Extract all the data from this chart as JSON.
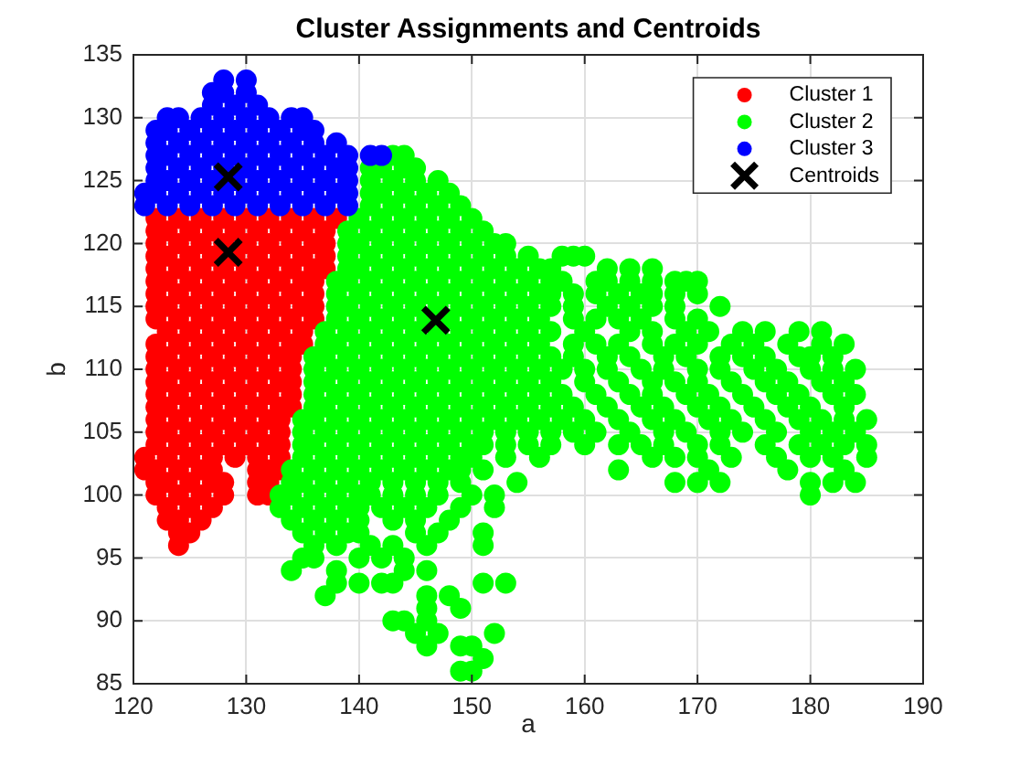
{
  "chart_data": {
    "type": "scatter",
    "title": "Cluster Assignments and Centroids",
    "xlabel": "a",
    "ylabel": "b",
    "xlim": [
      120,
      190
    ],
    "xticks": [
      120,
      130,
      140,
      150,
      160,
      170,
      180,
      190
    ],
    "ylim": [
      85,
      135
    ],
    "yticks": [
      85,
      90,
      95,
      100,
      105,
      110,
      115,
      120,
      125,
      130,
      135
    ],
    "grid": true,
    "legend": "top right",
    "marker": "circle",
    "series": [
      {
        "name": "Cluster 1",
        "color": "#ff0000",
        "x": [
          122,
          124,
          126,
          128,
          130,
          132,
          134,
          136,
          138,
          122,
          123,
          125,
          127,
          129,
          131,
          133,
          135,
          137,
          122,
          124,
          126,
          128,
          130,
          132,
          134,
          136,
          137,
          122,
          123,
          125,
          127,
          129,
          131,
          133,
          135,
          137,
          122,
          124,
          126,
          128,
          130,
          132,
          134,
          136,
          137,
          122,
          123,
          125,
          127,
          129,
          131,
          133,
          135,
          136,
          122,
          124,
          126,
          128,
          130,
          132,
          134,
          136,
          122,
          123,
          125,
          127,
          129,
          131,
          133,
          135,
          136,
          122,
          124,
          126,
          128,
          130,
          132,
          134,
          136,
          123,
          125,
          127,
          129,
          131,
          133,
          135,
          122,
          124,
          126,
          128,
          130,
          132,
          134,
          135,
          122,
          123,
          125,
          127,
          129,
          131,
          133,
          134,
          122,
          124,
          126,
          128,
          130,
          132,
          134,
          122,
          123,
          125,
          127,
          129,
          131,
          133,
          134,
          122,
          124,
          126,
          128,
          130,
          132,
          134,
          122,
          123,
          125,
          127,
          129,
          131,
          133,
          134,
          122,
          124,
          126,
          128,
          130,
          132,
          133,
          122,
          123,
          125,
          127,
          129,
          131,
          133,
          122,
          124,
          126,
          128,
          130,
          132,
          133,
          121,
          123,
          125,
          127,
          129,
          131,
          133,
          121,
          122,
          124,
          126,
          127,
          131,
          132,
          133,
          122,
          123,
          125,
          127,
          128,
          131,
          132,
          122,
          124,
          126,
          128,
          131,
          132,
          123,
          125,
          127,
          123,
          124,
          126,
          124,
          125,
          124
        ],
        "values": [
          122,
          122,
          122,
          122,
          122,
          122,
          122,
          122,
          122,
          121,
          121,
          121,
          121,
          121,
          121,
          121,
          121,
          121,
          120,
          120,
          120,
          120,
          120,
          120,
          120,
          120,
          120,
          119,
          119,
          119,
          119,
          119,
          119,
          119,
          119,
          119,
          118,
          118,
          118,
          118,
          118,
          118,
          118,
          118,
          118,
          117,
          117,
          117,
          117,
          117,
          117,
          117,
          117,
          117,
          116,
          116,
          116,
          116,
          116,
          116,
          116,
          116,
          115,
          115,
          115,
          115,
          115,
          115,
          115,
          115,
          115,
          114,
          114,
          114,
          114,
          114,
          114,
          114,
          114,
          113,
          113,
          113,
          113,
          113,
          113,
          113,
          112,
          112,
          112,
          112,
          112,
          112,
          112,
          112,
          111,
          111,
          111,
          111,
          111,
          111,
          111,
          111,
          110,
          110,
          110,
          110,
          110,
          110,
          110,
          109,
          109,
          109,
          109,
          109,
          109,
          109,
          109,
          108,
          108,
          108,
          108,
          108,
          108,
          108,
          107,
          107,
          107,
          107,
          107,
          107,
          107,
          107,
          106,
          106,
          106,
          106,
          106,
          106,
          106,
          105,
          105,
          105,
          105,
          105,
          105,
          105,
          104,
          104,
          104,
          104,
          104,
          104,
          104,
          103,
          103,
          103,
          103,
          103,
          103,
          103,
          102,
          102,
          102,
          102,
          102,
          102,
          102,
          102,
          101,
          101,
          101,
          101,
          101,
          101,
          101,
          100,
          100,
          100,
          100,
          100,
          100,
          99,
          99,
          99,
          98,
          98,
          98,
          97,
          97,
          96
        ]
      },
      {
        "name": "Cluster 2",
        "color": "#00ff00",
        "x": [
          143,
          144,
          141,
          142,
          144,
          145,
          141,
          143,
          145,
          147,
          141,
          142,
          144,
          146,
          148,
          141,
          143,
          145,
          147,
          149,
          140,
          142,
          144,
          146,
          148,
          150,
          139,
          141,
          143,
          145,
          147,
          149,
          151,
          139,
          140,
          142,
          144,
          146,
          148,
          150,
          152,
          153,
          139,
          141,
          143,
          145,
          147,
          149,
          151,
          153,
          155,
          158,
          159,
          160,
          139,
          140,
          142,
          144,
          146,
          148,
          150,
          152,
          154,
          156,
          157,
          162,
          164,
          166,
          138,
          139,
          141,
          143,
          145,
          147,
          149,
          151,
          153,
          155,
          157,
          158,
          161,
          162,
          164,
          166,
          168,
          169,
          170,
          138,
          140,
          142,
          144,
          146,
          148,
          150,
          152,
          154,
          156,
          157,
          159,
          161,
          163,
          165,
          166,
          168,
          170,
          138,
          139,
          141,
          143,
          145,
          147,
          149,
          151,
          153,
          155,
          157,
          159,
          162,
          164,
          166,
          168,
          172,
          138,
          140,
          142,
          144,
          146,
          148,
          150,
          152,
          154,
          156,
          159,
          161,
          163,
          165,
          168,
          170,
          137,
          139,
          141,
          143,
          145,
          147,
          149,
          151,
          153,
          155,
          157,
          160,
          164,
          166,
          169,
          171,
          174,
          176,
          179,
          181,
          137,
          138,
          140,
          142,
          144,
          146,
          148,
          150,
          152,
          154,
          156,
          159,
          161,
          163,
          166,
          168,
          170,
          173,
          175,
          178,
          181,
          183,
          136,
          137,
          139,
          141,
          143,
          145,
          147,
          149,
          151,
          153,
          155,
          157,
          159,
          162,
          164,
          167,
          169,
          172,
          174,
          176,
          179,
          180,
          182,
          136,
          138,
          140,
          142,
          144,
          146,
          148,
          150,
          152,
          154,
          156,
          158,
          160,
          162,
          165,
          167,
          170,
          172,
          175,
          177,
          180,
          182,
          184,
          136,
          137,
          139,
          141,
          143,
          145,
          147,
          149,
          151,
          153,
          155,
          157,
          160,
          163,
          166,
          168,
          170,
          173,
          176,
          178,
          181,
          183,
          136,
          138,
          140,
          142,
          144,
          146,
          148,
          150,
          152,
          154,
          156,
          158,
          161,
          164,
          166,
          169,
          171,
          174,
          177,
          179,
          182,
          184,
          136,
          137,
          139,
          141,
          143,
          145,
          147,
          149,
          151,
          153,
          155,
          157,
          159,
          162,
          165,
          167,
          170,
          172,
          175,
          178,
          180,
          183,
          135,
          136,
          138,
          140,
          142,
          144,
          146,
          148,
          150,
          152,
          154,
          156,
          158,
          160,
          163,
          166,
          168,
          171,
          173,
          176,
          179,
          181,
          183,
          185,
          135,
          137,
          139,
          141,
          143,
          145,
          147,
          149,
          151,
          153,
          155,
          157,
          159,
          161,
          164,
          167,
          169,
          172,
          174,
          177,
          180,
          182,
          184,
          135,
          136,
          138,
          140,
          142,
          144,
          146,
          148,
          150,
          151,
          153,
          155,
          157,
          160,
          163,
          165,
          167,
          170,
          172,
          176,
          179,
          181,
          183,
          185,
          135,
          137,
          139,
          141,
          143,
          145,
          147,
          149,
          150,
          153,
          156,
          166,
          168,
          170,
          173,
          177,
          180,
          182,
          185,
          134,
          136,
          138,
          140,
          142,
          144,
          146,
          148,
          149,
          151,
          163,
          171,
          178,
          183,
          134,
          135,
          137,
          139,
          141,
          143,
          145,
          147,
          149,
          154,
          168,
          170,
          172,
          180,
          182,
          184,
          133,
          134,
          136,
          138,
          140,
          141,
          143,
          145,
          147,
          150,
          152,
          180,
          133,
          135,
          137,
          139,
          140,
          142,
          144,
          146,
          149,
          152,
          134,
          136,
          138,
          140,
          143,
          145,
          148,
          135,
          137,
          139,
          140,
          145,
          147,
          151,
          136,
          138,
          141,
          143,
          146,
          151,
          135,
          136,
          140,
          142,
          144,
          134,
          138,
          144,
          146,
          138,
          140,
          142,
          143,
          151,
          153,
          137,
          146,
          148,
          146,
          149,
          143,
          144,
          146,
          145,
          147,
          152,
          146,
          149,
          150,
          151,
          149,
          150
        ],
        "values": [
          127,
          127,
          126,
          126,
          126,
          126,
          125,
          125,
          125,
          125,
          124,
          124,
          124,
          124,
          124,
          123,
          123,
          123,
          123,
          123,
          122,
          122,
          122,
          122,
          122,
          122,
          121,
          121,
          121,
          121,
          121,
          121,
          121,
          120,
          120,
          120,
          120,
          120,
          120,
          120,
          120,
          120,
          119,
          119,
          119,
          119,
          119,
          119,
          119,
          119,
          119,
          119,
          119,
          119,
          118,
          118,
          118,
          118,
          118,
          118,
          118,
          118,
          118,
          118,
          118,
          118,
          118,
          118,
          117,
          117,
          117,
          117,
          117,
          117,
          117,
          117,
          117,
          117,
          117,
          117,
          117,
          117,
          117,
          117,
          117,
          117,
          117,
          116,
          116,
          116,
          116,
          116,
          116,
          116,
          116,
          116,
          116,
          116,
          116,
          116,
          116,
          116,
          116,
          116,
          116,
          115,
          115,
          115,
          115,
          115,
          115,
          115,
          115,
          115,
          115,
          115,
          115,
          115,
          115,
          115,
          115,
          115,
          114,
          114,
          114,
          114,
          114,
          114,
          114,
          114,
          114,
          114,
          114,
          114,
          114,
          114,
          114,
          114,
          113,
          113,
          113,
          113,
          113,
          113,
          113,
          113,
          113,
          113,
          113,
          113,
          113,
          113,
          113,
          113,
          113,
          113,
          113,
          113,
          112,
          112,
          112,
          112,
          112,
          112,
          112,
          112,
          112,
          112,
          112,
          112,
          112,
          112,
          112,
          112,
          112,
          112,
          112,
          112,
          112,
          112,
          111,
          111,
          111,
          111,
          111,
          111,
          111,
          111,
          111,
          111,
          111,
          111,
          111,
          111,
          111,
          111,
          111,
          111,
          111,
          111,
          111,
          111,
          111,
          110,
          110,
          110,
          110,
          110,
          110,
          110,
          110,
          110,
          110,
          110,
          110,
          110,
          110,
          110,
          110,
          110,
          110,
          110,
          110,
          110,
          110,
          110,
          109,
          109,
          109,
          109,
          109,
          109,
          109,
          109,
          109,
          109,
          109,
          109,
          109,
          109,
          109,
          109,
          109,
          109,
          109,
          109,
          109,
          109,
          108,
          108,
          108,
          108,
          108,
          108,
          108,
          108,
          108,
          108,
          108,
          108,
          108,
          108,
          108,
          108,
          108,
          108,
          108,
          108,
          108,
          108,
          107,
          107,
          107,
          107,
          107,
          107,
          107,
          107,
          107,
          107,
          107,
          107,
          107,
          107,
          107,
          107,
          107,
          107,
          107,
          107,
          107,
          107,
          106,
          106,
          106,
          106,
          106,
          106,
          106,
          106,
          106,
          106,
          106,
          106,
          106,
          106,
          106,
          106,
          106,
          106,
          106,
          106,
          106,
          106,
          106,
          106,
          105,
          105,
          105,
          105,
          105,
          105,
          105,
          105,
          105,
          105,
          105,
          105,
          105,
          105,
          105,
          105,
          105,
          105,
          105,
          105,
          105,
          105,
          105,
          104,
          104,
          104,
          104,
          104,
          104,
          104,
          104,
          104,
          104,
          104,
          104,
          104,
          104,
          104,
          104,
          104,
          104,
          104,
          104,
          104,
          104,
          104,
          104,
          103,
          103,
          103,
          103,
          103,
          103,
          103,
          103,
          103,
          103,
          103,
          103,
          103,
          103,
          103,
          103,
          103,
          103,
          103,
          102,
          102,
          102,
          102,
          102,
          102,
          102,
          102,
          102,
          102,
          102,
          102,
          102,
          102,
          101,
          101,
          101,
          101,
          101,
          101,
          101,
          101,
          101,
          101,
          101,
          101,
          101,
          101,
          101,
          101,
          100,
          100,
          100,
          100,
          100,
          100,
          100,
          100,
          100,
          100,
          100,
          100,
          99,
          99,
          99,
          99,
          99,
          99,
          99,
          99,
          99,
          99,
          98,
          98,
          98,
          98,
          98,
          98,
          98,
          97,
          97,
          97,
          97,
          97,
          97,
          97,
          96,
          96,
          96,
          96,
          96,
          96,
          95,
          95,
          95,
          95,
          95,
          94,
          94,
          94,
          94,
          93,
          93,
          93,
          93,
          93,
          93,
          92,
          92,
          92,
          91,
          91,
          90,
          90,
          90,
          89,
          89,
          89,
          88,
          88,
          88,
          87,
          86,
          86
        ]
      },
      {
        "name": "Cluster 3",
        "color": "#0000ff",
        "x": [
          128,
          130,
          127,
          128,
          130,
          127,
          129,
          131,
          123,
          124,
          126,
          128,
          130,
          132,
          134,
          135,
          122,
          123,
          125,
          127,
          129,
          131,
          133,
          135,
          136,
          122,
          124,
          126,
          128,
          130,
          132,
          134,
          136,
          138,
          122,
          123,
          125,
          127,
          129,
          131,
          133,
          135,
          137,
          139,
          141,
          142,
          122,
          124,
          126,
          128,
          130,
          132,
          134,
          136,
          138,
          139,
          122,
          123,
          125,
          127,
          129,
          131,
          133,
          135,
          137,
          139,
          121,
          122,
          124,
          126,
          128,
          130,
          132,
          134,
          136,
          138,
          139,
          121,
          123,
          125,
          127,
          129,
          131,
          133,
          135,
          137,
          139
        ],
        "values": [
          133,
          133,
          132,
          132,
          132,
          131,
          131,
          131,
          130,
          130,
          130,
          130,
          130,
          130,
          130,
          130,
          129,
          129,
          129,
          129,
          129,
          129,
          129,
          129,
          129,
          128,
          128,
          128,
          128,
          128,
          128,
          128,
          128,
          128,
          127,
          127,
          127,
          127,
          127,
          127,
          127,
          127,
          127,
          127,
          127,
          127,
          126,
          126,
          126,
          126,
          126,
          126,
          126,
          126,
          126,
          126,
          125,
          125,
          125,
          125,
          125,
          125,
          125,
          125,
          125,
          125,
          124,
          124,
          124,
          124,
          124,
          124,
          124,
          124,
          124,
          124,
          124,
          123,
          123,
          123,
          123,
          123,
          123,
          123,
          123,
          123,
          123
        ]
      },
      {
        "name": "Centroids",
        "color": "#000000",
        "marker": "cross",
        "x": [
          128.4,
          128.4,
          146.8
        ],
        "values": [
          125.3,
          119.3,
          113.9
        ]
      }
    ]
  }
}
